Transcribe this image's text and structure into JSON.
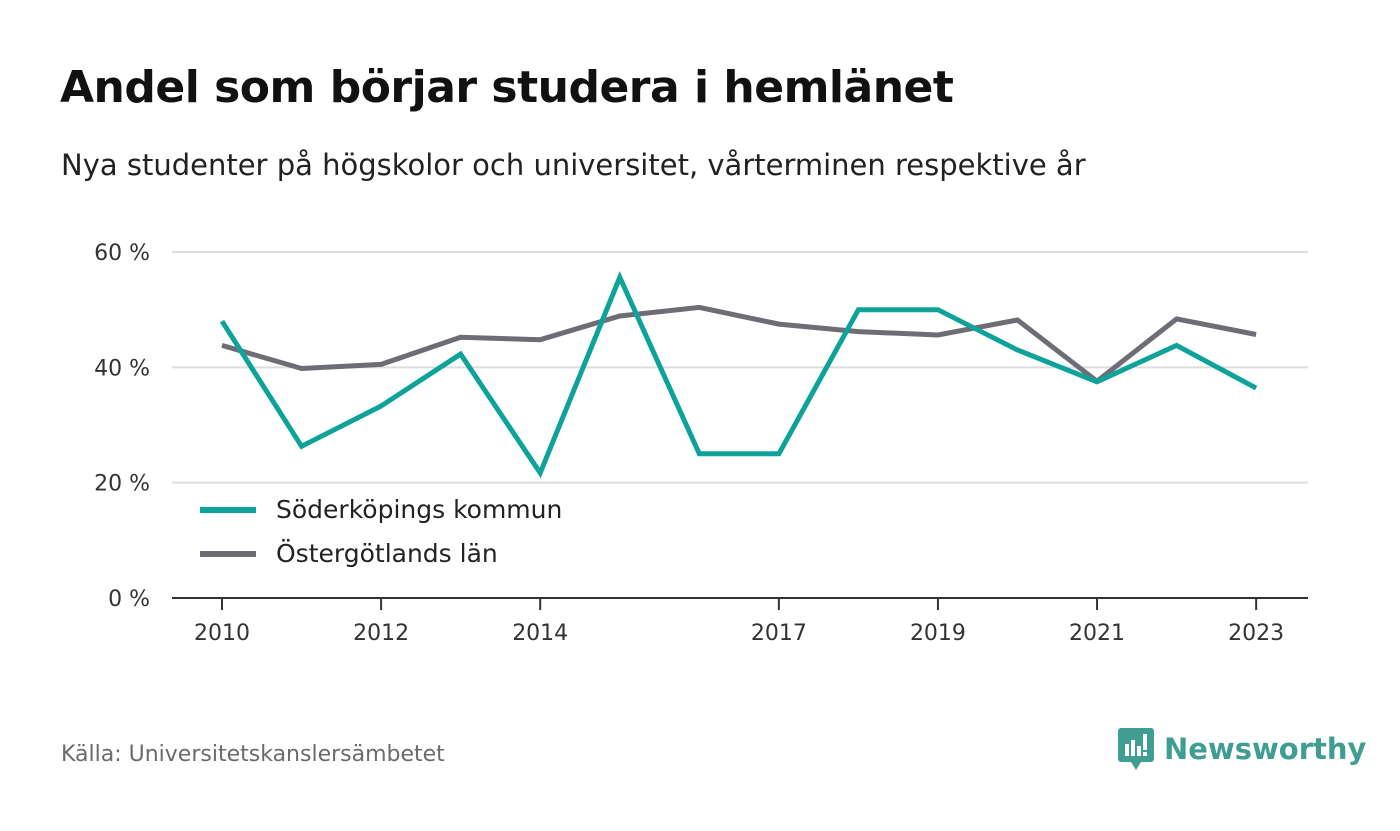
{
  "header": {
    "title": "Andel som börjar studera i hemlänet",
    "subtitle": "Nya studenter på högskolor och universitet, vårterminen respektive år"
  },
  "footer": {
    "source": "Källa: Universitetskanslersämbetet",
    "brand": "Newsworthy"
  },
  "colors": {
    "accent": "#0ea39a",
    "secondary": "#6e6c74",
    "brand": "#3f9e91",
    "grid": "#dddddd"
  },
  "chart_data": {
    "type": "line",
    "x": [
      2010,
      2011,
      2012,
      2013,
      2014,
      2015,
      2016,
      2017,
      2018,
      2019,
      2020,
      2021,
      2022,
      2023
    ],
    "x_tick_labels": [
      "2010",
      "2012",
      "2014",
      "2017",
      "2019",
      "2021",
      "2023"
    ],
    "y_tick_values": [
      0,
      20,
      40,
      60
    ],
    "y_tick_labels": [
      "0 %",
      "20 %",
      "40 %",
      "60 %"
    ],
    "ylim": [
      0,
      60
    ],
    "grid": true,
    "legend_position": "lower-left",
    "series": [
      {
        "name": "Söderköpings kommun",
        "color": "#0ea39a",
        "values": [
          48.0,
          26.3,
          33.3,
          42.3,
          21.7,
          55.6,
          25.0,
          25.0,
          50.0,
          50.0,
          43.0,
          37.5,
          43.8,
          36.4
        ]
      },
      {
        "name": "Östergötlands län",
        "color": "#6e6c74",
        "values": [
          43.8,
          39.8,
          40.5,
          45.2,
          44.8,
          48.9,
          50.4,
          47.5,
          46.2,
          45.6,
          48.2,
          37.6,
          48.4,
          45.7
        ]
      }
    ]
  }
}
